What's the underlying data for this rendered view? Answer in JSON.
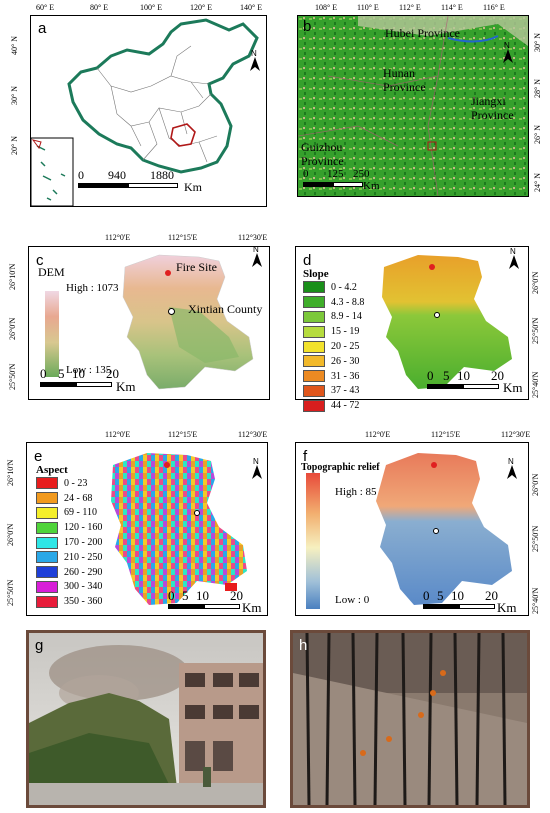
{
  "panels": {
    "a": {
      "label": "a",
      "top_ticks": [
        "60° E",
        "80° E",
        "100° E",
        "120° E",
        "140° E"
      ],
      "left_ticks": [
        "40° N",
        "30° N",
        "20° N"
      ],
      "scale": [
        "0",
        "940",
        "1880",
        "Km"
      ]
    },
    "b": {
      "label": "b",
      "top_ticks": [
        "108° E",
        "110° E",
        "112° E",
        "114° E",
        "116° E"
      ],
      "right_ticks": [
        "30° N",
        "28° N",
        "26° N",
        "24° N"
      ],
      "provinces": [
        "Hubei Province",
        "Hunan Province",
        "Jiangxi Province",
        "Guizhou Province"
      ],
      "scale": [
        "0",
        "125",
        "250",
        "Km"
      ]
    },
    "c": {
      "label": "c",
      "top_ticks": [
        "112°0'E",
        "112°15'E",
        "112°30'E"
      ],
      "left_ticks": [
        "26°10'N",
        "26°0'N",
        "25°50'N"
      ],
      "legend_title": "DEM",
      "high": "High : 1073",
      "low": "Low : 135",
      "fire_site": "Fire Site",
      "county": "Xintian County",
      "scale": [
        "0",
        "5",
        "10",
        "20",
        "Km"
      ]
    },
    "d": {
      "label": "d",
      "right_ticks": [
        "26°0'N",
        "25°50'N",
        "25°40'N"
      ],
      "legend_title": "Slope",
      "classes": [
        {
          "label": "0 - 4.2",
          "color": "#1a8f1a"
        },
        {
          "label": "4.3 - 8.8",
          "color": "#3fae2a"
        },
        {
          "label": "8.9 - 14",
          "color": "#7cc83a"
        },
        {
          "label": "15 - 19",
          "color": "#b6dc3e"
        },
        {
          "label": "20 - 25",
          "color": "#f2e22c"
        },
        {
          "label": "26 - 30",
          "color": "#f2b92a"
        },
        {
          "label": "31 - 36",
          "color": "#ec8a22"
        },
        {
          "label": "37 - 43",
          "color": "#e0561c"
        },
        {
          "label": "44 - 72",
          "color": "#d81e1e"
        }
      ],
      "scale": [
        "0",
        "5",
        "10",
        "20",
        "Km"
      ]
    },
    "e": {
      "label": "e",
      "top_ticks": [
        "112°0'E",
        "112°15'E",
        "112°30'E"
      ],
      "left_ticks": [
        "26°10'N",
        "26°0'N",
        "25°50'N"
      ],
      "legend_title": "Aspect",
      "classes": [
        {
          "label": "0 - 23",
          "color": "#e81c1c"
        },
        {
          "label": "24 - 68",
          "color": "#f29a1e"
        },
        {
          "label": "69 - 110",
          "color": "#f5ef2a"
        },
        {
          "label": "120 - 160",
          "color": "#4fd43a"
        },
        {
          "label": "170 - 200",
          "color": "#2ee6e6"
        },
        {
          "label": "210 - 250",
          "color": "#2aa8e8"
        },
        {
          "label": "260 - 290",
          "color": "#1e3fd8"
        },
        {
          "label": "300 - 340",
          "color": "#d81ed8"
        },
        {
          "label": "350 - 360",
          "color": "#e81c3a"
        }
      ],
      "scale": [
        "0",
        "5",
        "10",
        "20",
        "Km"
      ]
    },
    "f": {
      "label": "f",
      "top_ticks": [
        "112°0'E",
        "112°15'E",
        "112°30'E"
      ],
      "right_ticks": [
        "26°0'N",
        "25°50'N",
        "25°40'N"
      ],
      "legend_title": "Topographic relief",
      "high": "High : 85",
      "low": "Low : 0",
      "scale": [
        "0",
        "5",
        "10",
        "20",
        "Km"
      ]
    },
    "g": {
      "label": "g"
    },
    "h": {
      "label": "h"
    }
  },
  "colors": {
    "china_border": "#1c7a5a",
    "study_area": "#b01818",
    "fire_point": "#e02020"
  }
}
